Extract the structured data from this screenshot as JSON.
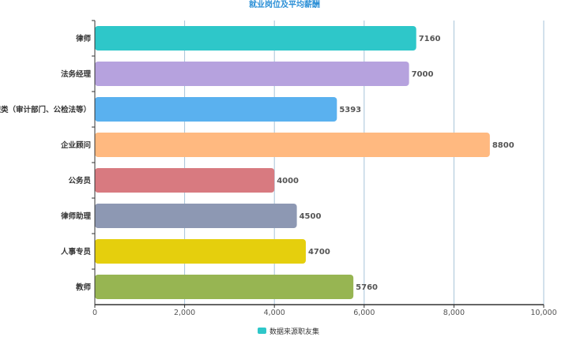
{
  "chart_data": {
    "type": "bar",
    "orientation": "horizontal",
    "title": "就业岗位及平均薪酬",
    "categories": [
      "律师",
      "法务经理",
      "公职类（审计部门、公检法等）",
      "企业顾问",
      "公务员",
      "律师助理",
      "人事专员",
      "教师"
    ],
    "series": [
      {
        "name": "数据来源职友集",
        "values": [
          7160,
          7000,
          5393,
          8800,
          4000,
          4500,
          4700,
          5760
        ]
      }
    ],
    "bar_colors": [
      "#2ec7c9",
      "#b6a2de",
      "#5ab1ef",
      "#ffb980",
      "#d87a80",
      "#8d98b3",
      "#e5cf0d",
      "#97b552"
    ],
    "legend_color": "#2ec7c9",
    "xlim": [
      0,
      10000
    ],
    "x_ticks": [
      0,
      2000,
      4000,
      6000,
      8000,
      10000
    ],
    "x_tick_labels": [
      "0",
      "2,000",
      "4,000",
      "6,000",
      "8,000",
      "10,000"
    ],
    "grid": true,
    "legend_position": "bottom-center"
  }
}
